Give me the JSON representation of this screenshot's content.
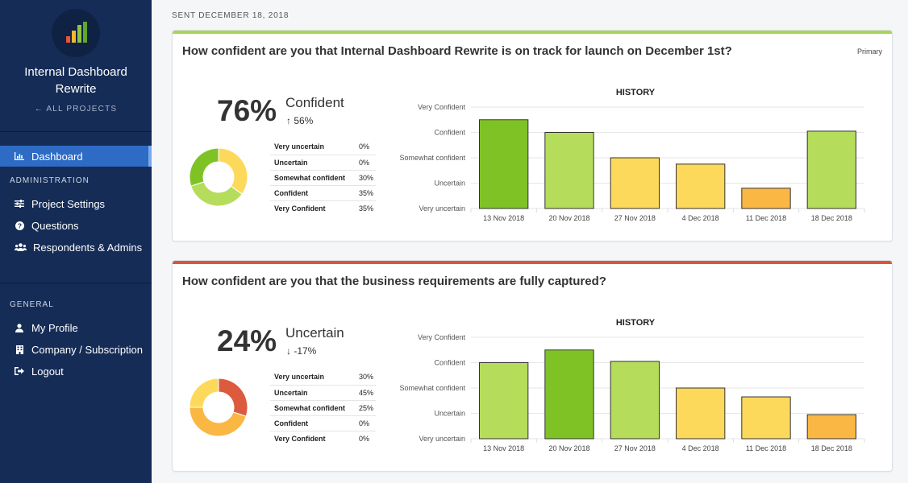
{
  "sidebar": {
    "project_title_line1": "Internal Dashboard",
    "project_title_line2": "Rewrite",
    "all_projects": "← ALL PROJECTS",
    "dashboard": "Dashboard",
    "administration_heading": "ADMINISTRATION",
    "admin_items": [
      "Project Settings",
      "Questions",
      "Respondents & Admins"
    ],
    "general_heading": "GENERAL",
    "general_items": [
      "My Profile",
      "Company / Subscription",
      "Logout"
    ]
  },
  "main": {
    "sent_label": "SENT DECEMBER 18, 2018",
    "cards": [
      {
        "question": "How confident are you that Internal Dashboard Rewrite is on track for launch on December 1st?",
        "tag": "Primary",
        "accent_color": "#a8d555",
        "percent": "76%",
        "label": "Confident",
        "delta": "↑ 56%",
        "distribution": [
          {
            "name": "Very uncertain",
            "value": "0%"
          },
          {
            "name": "Uncertain",
            "value": "0%"
          },
          {
            "name": "Somewhat confident",
            "value": "30%"
          },
          {
            "name": "Confident",
            "value": "35%"
          },
          {
            "name": "Very Confident",
            "value": "35%"
          }
        ]
      },
      {
        "question": "How confident are you that the business requirements are fully captured?",
        "tag": "",
        "accent_color": "#d8553c",
        "percent": "24%",
        "label": "Uncertain",
        "delta": "↓ -17%",
        "distribution": [
          {
            "name": "Very uncertain",
            "value": "30%"
          },
          {
            "name": "Uncertain",
            "value": "45%"
          },
          {
            "name": "Somewhat confident",
            "value": "25%"
          },
          {
            "name": "Confident",
            "value": "0%"
          },
          {
            "name": "Very Confident",
            "value": "0%"
          }
        ]
      }
    ]
  },
  "chart_data": [
    {
      "type": "bar",
      "title": "HISTORY",
      "categories": [
        "13 Nov 2018",
        "20 Nov 2018",
        "27 Nov 2018",
        "4 Dec 2018",
        "11 Dec 2018",
        "18 Dec 2018"
      ],
      "y_levels": [
        "Very uncertain",
        "Uncertain",
        "Somewhat confident",
        "Confident",
        "Very Confident"
      ],
      "values": [
        3.5,
        3.0,
        2.0,
        1.75,
        0.8,
        3.05
      ],
      "colors": [
        "#7fc226",
        "#b5dc5b",
        "#fdd95b",
        "#fdd95b",
        "#fbb743",
        "#b5dc5b"
      ],
      "ylim": [
        0,
        4
      ]
    },
    {
      "type": "bar",
      "title": "HISTORY",
      "categories": [
        "13 Nov 2018",
        "20 Nov 2018",
        "27 Nov 2018",
        "4 Dec 2018",
        "11 Dec 2018",
        "18 Dec 2018"
      ],
      "y_levels": [
        "Very uncertain",
        "Uncertain",
        "Somewhat confident",
        "Confident",
        "Very Confident"
      ],
      "values": [
        3.0,
        3.5,
        3.05,
        2.0,
        1.65,
        0.95
      ],
      "colors": [
        "#b5dc5b",
        "#7fc226",
        "#b5dc5b",
        "#fdd95b",
        "#fdd95b",
        "#fbb743"
      ],
      "ylim": [
        0,
        4
      ]
    }
  ],
  "donut_data": [
    {
      "segments": [
        {
          "value": 35,
          "color": "#fdd95b"
        },
        {
          "value": 35,
          "color": "#b5dc5b"
        },
        {
          "value": 30,
          "color": "#7fc226"
        }
      ]
    },
    {
      "segments": [
        {
          "value": 30,
          "color": "#dc5a3e"
        },
        {
          "value": 45,
          "color": "#fbb743"
        },
        {
          "value": 25,
          "color": "#fdd95b"
        }
      ]
    }
  ]
}
